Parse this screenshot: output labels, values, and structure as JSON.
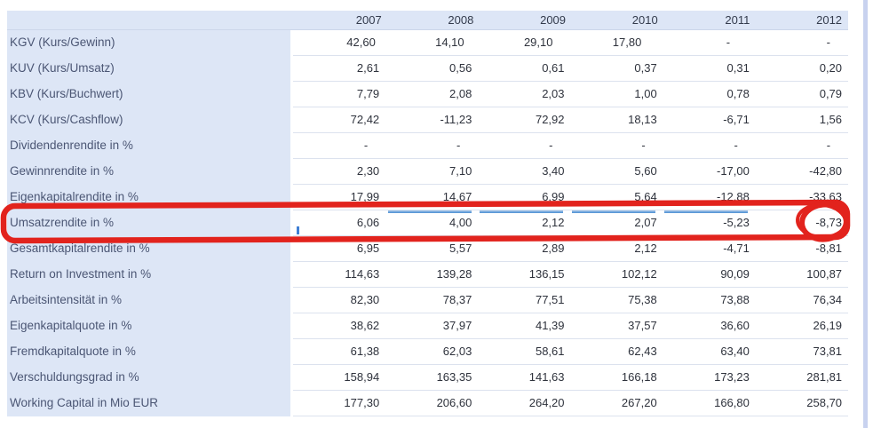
{
  "table": {
    "years": [
      "2007",
      "2008",
      "2009",
      "2010",
      "2011",
      "2012"
    ],
    "rows": [
      {
        "label": "KGV (Kurs/Gewinn)",
        "values": [
          "42,60",
          "14,10",
          "29,10",
          "17,80",
          "-",
          "-"
        ]
      },
      {
        "label": "KUV (Kurs/Umsatz)",
        "values": [
          "2,61",
          "0,56",
          "0,61",
          "0,37",
          "0,31",
          "0,20"
        ]
      },
      {
        "label": "KBV (Kurs/Buchwert)",
        "values": [
          "7,79",
          "2,08",
          "2,03",
          "1,00",
          "0,78",
          "0,79"
        ]
      },
      {
        "label": "KCV (Kurs/Cashflow)",
        "values": [
          "72,42",
          "-11,23",
          "72,92",
          "18,13",
          "-6,71",
          "1,56"
        ]
      },
      {
        "label": "Dividendenrendite in %",
        "values": [
          "-",
          "-",
          "-",
          "-",
          "-",
          "-"
        ]
      },
      {
        "label": "Gewinnrendite in %",
        "values": [
          "2,30",
          "7,10",
          "3,40",
          "5,60",
          "-17,00",
          "-42,80"
        ]
      },
      {
        "label": "Eigenkapitalrendite in %",
        "values": [
          "17,99",
          "14,67",
          "6,99",
          "5,64",
          "-12,88",
          "-33,63"
        ]
      },
      {
        "label": "Umsatzrendite in %",
        "values": [
          "6,06",
          "4,00",
          "2,12",
          "2,07",
          "-5,23",
          "-8,73"
        ]
      },
      {
        "label": "Gesamtkapitalrendite in %",
        "values": [
          "6,95",
          "5,57",
          "2,89",
          "2,12",
          "-4,71",
          "-8,81"
        ]
      },
      {
        "label": "Return on Investment in %",
        "values": [
          "114,63",
          "139,28",
          "136,15",
          "102,12",
          "90,09",
          "100,87"
        ]
      },
      {
        "label": "Arbeitsintensität in %",
        "values": [
          "82,30",
          "78,37",
          "77,51",
          "75,38",
          "73,88",
          "76,34"
        ]
      },
      {
        "label": "Eigenkapitalquote in %",
        "values": [
          "38,62",
          "37,97",
          "41,39",
          "37,57",
          "36,60",
          "26,19"
        ]
      },
      {
        "label": "Fremdkapitalquote in %",
        "values": [
          "61,38",
          "62,03",
          "58,61",
          "62,43",
          "63,40",
          "73,81"
        ]
      },
      {
        "label": "Verschuldungsgrad in %",
        "values": [
          "158,94",
          "163,35",
          "141,63",
          "166,18",
          "173,23",
          "281,81"
        ]
      },
      {
        "label": "Working Capital in Mio EUR",
        "values": [
          "177,30",
          "206,60",
          "264,20",
          "267,20",
          "166,80",
          "258,70"
        ]
      }
    ]
  },
  "annotation": {
    "type": "hand-drawn-red-marker",
    "boxed_row_label": "Umsatzrendite in %",
    "circled_value": "-8,73",
    "circled_year": "2012",
    "color": "#e2231d"
  },
  "colors": {
    "header_bg": "#dde6f6",
    "label_text": "#4b5674",
    "value_text": "#2e323c",
    "row_separator": "#dce2ee",
    "scroll_strip": "#c8d2ef",
    "blue_highlight": "#4a8fd3"
  }
}
